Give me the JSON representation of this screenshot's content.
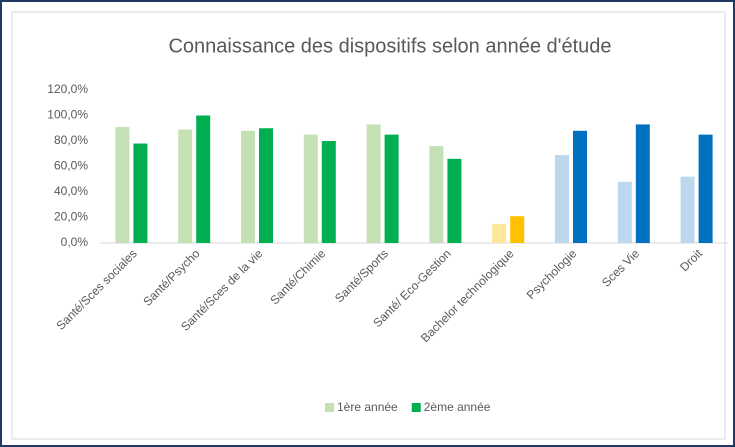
{
  "chart_data": {
    "type": "bar",
    "title": "Connaissance des dispositifs selon année d'étude",
    "categories": [
      "Santé/Sces sociales",
      "Santé/Psycho",
      "Santé/Sces de la vie",
      "Santé/Chimie",
      "Santé/Sports",
      "Santé/ Eco-Gestion",
      "Bachelor technologique",
      "Psychologie",
      "Sces Vie",
      "Droit"
    ],
    "series": [
      {
        "name": "1ère année",
        "color": "#c5e0b4",
        "colors": [
          "#c5e0b4",
          "#c5e0b4",
          "#c5e0b4",
          "#c5e0b4",
          "#c5e0b4",
          "#c5e0b4",
          "#ffe699",
          "#bdd7ee",
          "#bdd7ee",
          "#bdd7ee"
        ],
        "values": [
          91,
          89,
          88,
          85,
          93,
          76,
          15,
          69,
          48,
          52
        ]
      },
      {
        "name": "2ème année",
        "color": "#00b050",
        "colors": [
          "#00b050",
          "#00b050",
          "#00b050",
          "#00b050",
          "#00b050",
          "#00b050",
          "#ffc000",
          "#0070c0",
          "#0070c0",
          "#0070c0"
        ],
        "values": [
          78,
          100,
          90,
          80,
          85,
          66,
          21,
          88,
          93,
          85
        ]
      }
    ],
    "ylim": [
      0,
      120
    ],
    "yticks": [
      {
        "value": 0,
        "label": "0,0%"
      },
      {
        "value": 20,
        "label": "20,0%"
      },
      {
        "value": 40,
        "label": "40,0%"
      },
      {
        "value": 60,
        "label": "60,0%"
      },
      {
        "value": 80,
        "label": "80,0%"
      },
      {
        "value": 100,
        "label": "100,0%"
      },
      {
        "value": 120,
        "label": "120,0%"
      }
    ],
    "grid": false
  }
}
